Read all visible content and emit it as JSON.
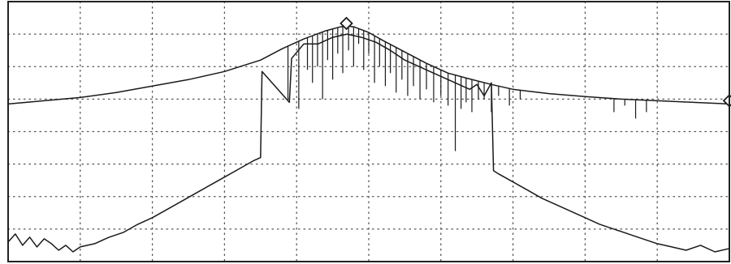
{
  "chart_data": {
    "type": "line",
    "title": "",
    "xlabel": "",
    "ylabel": "",
    "xlim": [
      0,
      100
    ],
    "ylim": [
      0,
      8
    ],
    "grid": "dotted",
    "x_divisions": 10,
    "y_divisions": 8,
    "colors": {
      "trace": "#1a1a1a",
      "grid": "#555555",
      "frame": "#222222",
      "background": "#ffffff"
    },
    "markers": [
      {
        "name": "peak-marker",
        "shape": "diamond",
        "x": 46.9,
        "y": 7.33
      },
      {
        "name": "right-edge-marker",
        "shape": "diamond",
        "x": 100,
        "y": 4.95
      }
    ],
    "series": [
      {
        "role": "upper-envelope",
        "x": [
          0,
          5,
          10,
          15,
          20,
          25,
          30,
          35,
          38,
          41,
          44,
          46,
          47,
          48,
          50,
          52,
          55,
          58,
          61,
          64,
          67,
          70,
          75,
          80,
          85,
          90,
          95,
          100
        ],
        "y": [
          4.85,
          4.95,
          5.05,
          5.2,
          5.4,
          5.6,
          5.85,
          6.2,
          6.55,
          6.85,
          7.1,
          7.22,
          7.25,
          7.22,
          7.05,
          6.8,
          6.45,
          6.1,
          5.8,
          5.62,
          5.45,
          5.3,
          5.17,
          5.08,
          5.0,
          4.95,
          4.9,
          4.85
        ]
      },
      {
        "role": "lower-trace",
        "x": [
          0,
          1,
          2,
          3,
          4,
          5,
          6,
          7,
          8,
          9,
          10,
          12,
          14,
          16,
          18,
          20,
          22,
          24,
          26,
          28,
          30,
          32,
          34,
          35,
          35.2,
          39,
          39.3,
          41,
          43,
          45,
          47,
          49,
          51,
          53,
          55,
          57,
          59,
          61,
          63,
          64,
          65,
          66,
          67,
          67.3,
          68,
          70,
          72,
          74,
          76,
          78,
          80,
          82,
          84,
          86,
          88,
          90,
          92,
          94,
          96,
          98,
          100
        ],
        "y": [
          0.6,
          0.85,
          0.5,
          0.75,
          0.45,
          0.7,
          0.55,
          0.35,
          0.5,
          0.3,
          0.45,
          0.55,
          0.75,
          0.9,
          1.15,
          1.35,
          1.6,
          1.85,
          2.1,
          2.35,
          2.6,
          2.85,
          3.1,
          3.2,
          5.85,
          4.9,
          6.25,
          6.7,
          6.7,
          6.9,
          7.0,
          6.9,
          6.75,
          6.5,
          6.2,
          6.0,
          5.8,
          5.6,
          5.4,
          5.3,
          5.45,
          5.1,
          5.5,
          2.8,
          2.7,
          2.45,
          2.2,
          1.95,
          1.75,
          1.55,
          1.35,
          1.15,
          1.0,
          0.85,
          0.7,
          0.55,
          0.45,
          0.35,
          0.5,
          0.3,
          0.4
        ]
      },
      {
        "role": "absorption-dips",
        "x": [
          38.8,
          40.3,
          41.5,
          42.2,
          42.9,
          43.6,
          44.3,
          45.0,
          45.7,
          46.4,
          47.2,
          47.9,
          48.6,
          49.3,
          50.0,
          50.8,
          51.5,
          52.3,
          53.0,
          53.8,
          54.6,
          55.4,
          56.2,
          57.1,
          58.0,
          59.0,
          60.0,
          61.0,
          62.0,
          62.8,
          63.5,
          64.3,
          65.2,
          66.0,
          67.0,
          68.0,
          69.5,
          71.0,
          84.0,
          85.5,
          87.0,
          88.5
        ],
        "y": [
          5.0,
          4.7,
          5.9,
          5.5,
          6.0,
          5.0,
          6.2,
          5.6,
          6.4,
          5.8,
          6.5,
          6.0,
          6.7,
          5.9,
          6.4,
          5.5,
          6.0,
          5.4,
          5.8,
          5.2,
          5.6,
          5.1,
          5.4,
          5.0,
          5.3,
          4.9,
          5.1,
          4.8,
          3.4,
          4.7,
          4.9,
          4.6,
          5.0,
          5.0,
          4.6,
          5.1,
          4.8,
          5.0,
          4.6,
          4.8,
          4.4,
          4.6
        ]
      }
    ]
  }
}
